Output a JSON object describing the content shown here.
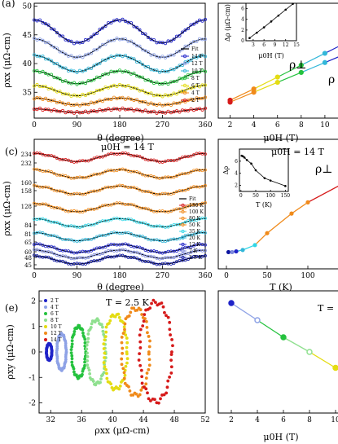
{
  "chart_data": [
    {
      "id": "a",
      "panel_label": "(a)",
      "type": "scatter",
      "xlabel": "θ (degree)",
      "ylabel": "ρxx (μΩ-cm)",
      "xlim": [
        0,
        360
      ],
      "ylim": [
        30.5,
        50.5
      ],
      "xticks": [
        0,
        90,
        180,
        270,
        360
      ],
      "yticks": [
        35,
        40,
        45,
        50
      ],
      "legend_position": "right",
      "legend_title": "Fit",
      "series": [
        {
          "name": "14 T",
          "color": "#1f23c8",
          "base": 45.6,
          "amp": 2.0
        },
        {
          "name": "12 T",
          "color": "#8ea2e6",
          "base": 42.7,
          "amp": 1.6
        },
        {
          "name": "10 T",
          "color": "#33b7d9",
          "base": 40.0,
          "amp": 1.4
        },
        {
          "name": "8 T",
          "color": "#25c23e",
          "base": 37.6,
          "amp": 1.1
        },
        {
          "name": "6 T",
          "color": "#e4dc12",
          "base": 35.3,
          "amp": 0.9
        },
        {
          "name": "4 T",
          "color": "#f08a1a",
          "base": 33.4,
          "amp": 0.6
        },
        {
          "name": "2 T",
          "color": "#d61a1a",
          "base": 31.8,
          "amp": 0.3
        }
      ]
    },
    {
      "id": "b",
      "type": "line",
      "xlabel": "μ0H (T)",
      "xlim": [
        1,
        12
      ],
      "ylim": [
        0,
        1
      ],
      "xticks": [
        2,
        4,
        6,
        8,
        10,
        12
      ],
      "labels": [
        "ρ⊥",
        "ρ"
      ],
      "series": [
        {
          "name": "ρ⊥",
          "x": [
            2,
            4,
            6,
            8,
            10,
            12
          ],
          "values": [
            0.05,
            0.22,
            0.4,
            0.58,
            0.76,
            0.94
          ],
          "colors": [
            "#d61a1a",
            "#f08a1a",
            "#e4dc12",
            "#25c23e",
            "#33b7d9",
            "#1f23c8"
          ]
        },
        {
          "name": "ρ",
          "x": [
            2,
            4,
            6,
            8,
            10,
            12
          ],
          "values": [
            0.02,
            0.17,
            0.32,
            0.47,
            0.62,
            0.77
          ],
          "colors": [
            "#d61a1a",
            "#f08a1a",
            "#e4dc12",
            "#25c23e",
            "#33b7d9",
            "#1f23c8"
          ]
        }
      ],
      "inset": {
        "type": "line",
        "xlabel": "μ0H (T)",
        "ylabel": "Δρ (μΩ-cm)",
        "xlim": [
          1,
          15
        ],
        "ylim": [
          0,
          7
        ],
        "xticks": [
          3,
          6,
          9,
          12,
          15
        ],
        "yticks": [
          0,
          2,
          4,
          6
        ],
        "x": [
          2,
          4,
          6,
          8,
          10,
          12,
          14
        ],
        "values": [
          0.5,
          1.5,
          2.5,
          3.6,
          4.7,
          5.8,
          6.9
        ]
      }
    },
    {
      "id": "c",
      "panel_label": "(c)",
      "type": "scatter",
      "annotation": "μ0H = 14 T",
      "xlabel": "θ (degree)",
      "ylabel": "ρxx (μΩ-cm)",
      "xlim": [
        0,
        360
      ],
      "xticks": [
        0,
        90,
        180,
        270,
        360
      ],
      "yticks": [
        "234",
        "232",
        "160",
        "158",
        "128",
        "84",
        "81",
        "65",
        "60",
        "48",
        "45"
      ],
      "legend_position": "right",
      "legend_title": "Fit",
      "series": [
        {
          "name": "150 K",
          "color": "#d61a1a",
          "base": 0.9,
          "amp": 0.035
        },
        {
          "name": "100 K",
          "color": "#f08a1a",
          "base": 0.76,
          "amp": 0.035
        },
        {
          "name": "80 K",
          "color": "#f08a1a",
          "base": 0.62,
          "amp": 0.035
        },
        {
          "name": "50 K",
          "color": "#f08a1a",
          "base": 0.47,
          "amp": 0.035
        },
        {
          "name": "35 K",
          "color": "#33d6e6",
          "base": 0.34,
          "amp": 0.035
        },
        {
          "name": "20 K",
          "color": "#33b7d9",
          "base": 0.22,
          "amp": 0.035
        },
        {
          "name": "12 K",
          "color": "#1f23c8",
          "base": 0.12,
          "amp": 0.035
        },
        {
          "name": "7 K",
          "color": "#7d89dc",
          "base": 0.07,
          "amp": 0.035
        },
        {
          "name": "2.5 K",
          "color": "#0b14a0",
          "base": 0.02,
          "amp": 0.035
        }
      ]
    },
    {
      "id": "d",
      "type": "line",
      "annotation": "μ0H = 14 T",
      "xlabel": "T (K)",
      "xlim": [
        -10,
        150
      ],
      "ylim": [
        0,
        1
      ],
      "xticks": [
        0,
        50,
        100
      ],
      "labels": [
        "ρ⊥"
      ],
      "series": [
        {
          "name": "ρ⊥",
          "x": [
            2.5,
            7,
            12,
            20,
            35,
            50,
            80,
            100,
            150
          ],
          "values": [
            0.03,
            0.03,
            0.04,
            0.06,
            0.13,
            0.3,
            0.58,
            0.74,
            1.05
          ],
          "colors": [
            "#0b14a0",
            "#7d89dc",
            "#1f23c8",
            "#33b7d9",
            "#33d6e6",
            "#f08a1a",
            "#f08a1a",
            "#f08a1a",
            "#d61a1a"
          ]
        }
      ],
      "inset": {
        "type": "line",
        "xlabel": "T (K)",
        "ylabel": "Δρ",
        "xlim": [
          -5,
          160
        ],
        "ylim": [
          1,
          8
        ],
        "xticks": [
          0,
          50,
          100,
          150
        ],
        "yticks": [
          2,
          4,
          6
        ],
        "x": [
          2.5,
          7,
          12,
          20,
          35,
          50,
          80,
          100,
          150
        ],
        "values": [
          6.9,
          6.8,
          6.6,
          6.2,
          5.6,
          4.5,
          3.2,
          2.8,
          1.9
        ]
      }
    },
    {
      "id": "e",
      "panel_label": "(e)",
      "type": "scatter",
      "annotation": "T = 2.5 K",
      "xlabel": "ρxx (μΩ-cm)",
      "ylabel": "ρxy (μΩ-cm)",
      "xlim": [
        30.5,
        52
      ],
      "ylim": [
        -2.4,
        2.4
      ],
      "xticks": [
        32,
        36,
        40,
        44,
        48,
        52
      ],
      "yticks": [
        -2,
        -1,
        0,
        1,
        2
      ],
      "legend_position": "top-left",
      "series": [
        {
          "name": "2 T",
          "color": "#1f23c8",
          "cx": 31.8,
          "rx": 0.35,
          "ry": 0.32
        },
        {
          "name": "4 T",
          "color": "#8ea2e6",
          "cx": 33.4,
          "rx": 0.6,
          "ry": 0.7
        },
        {
          "name": "6 T",
          "color": "#25c23e",
          "cx": 35.6,
          "rx": 0.9,
          "ry": 1.0
        },
        {
          "name": "8 T",
          "color": "#8fe08f",
          "cx": 37.9,
          "rx": 1.2,
          "ry": 1.25
        },
        {
          "name": "10 T",
          "color": "#e4dc12",
          "cx": 40.4,
          "rx": 1.5,
          "ry": 1.45
        },
        {
          "name": "12 T",
          "color": "#f08a1a",
          "cx": 43.0,
          "rx": 1.8,
          "ry": 1.7
        },
        {
          "name": "14 T",
          "color": "#d61a1a",
          "cx": 45.6,
          "rx": 2.1,
          "ry": 1.95
        }
      ]
    },
    {
      "id": "f",
      "type": "line",
      "annotation": "T =",
      "xlabel": "μ0H (T)",
      "xlim": [
        1,
        11
      ],
      "ylim": [
        0,
        1
      ],
      "xticks": [
        "2",
        "4",
        "6",
        "8",
        "10",
        "1"
      ],
      "series": [
        {
          "name": "",
          "x": [
            2,
            4,
            6,
            8,
            10,
            12
          ],
          "values": [
            0.9,
            0.76,
            0.62,
            0.5,
            0.37,
            0.24
          ],
          "colors": [
            "#1f23c8",
            "#8ea2e6",
            "#25c23e",
            "#8fe08f",
            "#e4dc12",
            "#f08a1a"
          ]
        }
      ]
    }
  ]
}
